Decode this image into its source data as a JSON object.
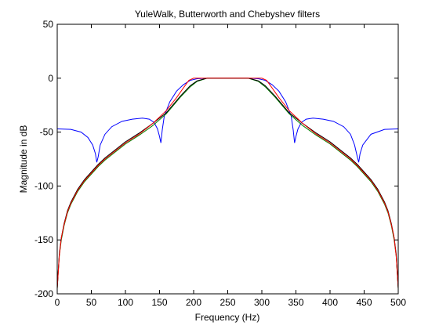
{
  "chart_data": {
    "type": "line",
    "title": "YuleWalk, Butterworth and Chebyshev filters",
    "xlabel": "Frequency (Hz)",
    "ylabel": "Magnitude in dB",
    "xlim": [
      0,
      500
    ],
    "ylim": [
      -200,
      50
    ],
    "xticks": [
      0,
      50,
      100,
      150,
      200,
      250,
      300,
      350,
      400,
      450,
      500
    ],
    "yticks": [
      50,
      0,
      -50,
      -100,
      -150,
      -200
    ],
    "grid": false,
    "legend": "none",
    "series": [
      {
        "color": "#0000ff",
        "x": [
          0,
          20,
          35,
          45,
          52,
          56,
          58,
          60,
          63,
          70,
          80,
          95,
          110,
          125,
          135,
          142,
          147,
          150,
          152,
          154,
          157,
          165,
          175,
          185,
          195,
          205,
          220,
          250,
          280,
          295,
          305,
          315,
          325,
          335,
          343,
          346,
          348,
          350,
          353,
          358,
          365,
          375,
          390,
          405,
          420,
          430,
          436,
          440,
          442,
          444,
          448,
          460,
          480,
          500
        ],
        "y": [
          -47,
          -47.5,
          -50,
          -55,
          -62,
          -70,
          -78,
          -73,
          -62,
          -52,
          -45,
          -40,
          -38,
          -37,
          -38,
          -41,
          -47,
          -54,
          -60,
          -48,
          -35,
          -22,
          -12,
          -6,
          -2,
          -0.5,
          0,
          0,
          0,
          -0.5,
          -2,
          -6,
          -12,
          -22,
          -35,
          -48,
          -60,
          -54,
          -47,
          -41,
          -38,
          -37,
          -38,
          -40,
          -45,
          -52,
          -62,
          -73,
          -78,
          -70,
          -62,
          -52,
          -47.5,
          -47
        ]
      },
      {
        "color": "#008000",
        "x": [
          0,
          3,
          6,
          10,
          15,
          20,
          30,
          40,
          50,
          60,
          70,
          80,
          90,
          100,
          120,
          140,
          160,
          180,
          195,
          205,
          215,
          220,
          250,
          280,
          285,
          295,
          305,
          320,
          340,
          360,
          380,
          400,
          410,
          420,
          430,
          440,
          450,
          460,
          470,
          480,
          485,
          490,
          494,
          497,
          500
        ],
        "y": [
          -195,
          -165,
          -150,
          -137,
          -125,
          -117,
          -105,
          -96,
          -89,
          -82,
          -76,
          -71,
          -66,
          -61,
          -53,
          -44,
          -33,
          -18,
          -8,
          -3,
          -1,
          0,
          0,
          0,
          -1,
          -3,
          -8,
          -18,
          -33,
          -44,
          -53,
          -61,
          -66,
          -71,
          -76,
          -82,
          -89,
          -96,
          -105,
          -117,
          -125,
          -137,
          -150,
          -165,
          -195
        ]
      },
      {
        "color": "#000000",
        "x": [
          0,
          3,
          6,
          10,
          15,
          20,
          30,
          40,
          50,
          60,
          70,
          80,
          90,
          100,
          120,
          140,
          160,
          180,
          195,
          205,
          215,
          220,
          250,
          280,
          285,
          295,
          305,
          320,
          340,
          360,
          380,
          400,
          410,
          420,
          430,
          440,
          450,
          460,
          470,
          480,
          485,
          490,
          494,
          497,
          500
        ],
        "y": [
          -195,
          -163,
          -148,
          -135,
          -123,
          -115,
          -103,
          -94,
          -87,
          -80,
          -74,
          -69,
          -64,
          -59,
          -51,
          -42,
          -32,
          -17,
          -7,
          -2.5,
          -0.8,
          0,
          0,
          0,
          -0.8,
          -2.5,
          -7,
          -17,
          -32,
          -42,
          -51,
          -59,
          -64,
          -69,
          -74,
          -80,
          -87,
          -94,
          -103,
          -115,
          -123,
          -135,
          -148,
          -163,
          -195
        ]
      },
      {
        "color": "#ff0000",
        "x": [
          0,
          3,
          6,
          10,
          15,
          20,
          30,
          40,
          50,
          60,
          70,
          80,
          90,
          100,
          120,
          140,
          160,
          175,
          185,
          193,
          200,
          250,
          300,
          307,
          315,
          325,
          340,
          360,
          380,
          400,
          410,
          420,
          430,
          440,
          450,
          460,
          470,
          480,
          485,
          490,
          494,
          497,
          500
        ],
        "y": [
          -195,
          -165,
          -148,
          -136,
          -124,
          -116,
          -104,
          -95,
          -88,
          -81,
          -75,
          -70,
          -65,
          -60,
          -52,
          -42,
          -30,
          -18,
          -9,
          -2,
          0,
          0,
          0,
          -2,
          -9,
          -18,
          -30,
          -42,
          -52,
          -60,
          -65,
          -70,
          -75,
          -81,
          -88,
          -95,
          -104,
          -116,
          -124,
          -136,
          -148,
          -165,
          -195
        ]
      }
    ]
  }
}
